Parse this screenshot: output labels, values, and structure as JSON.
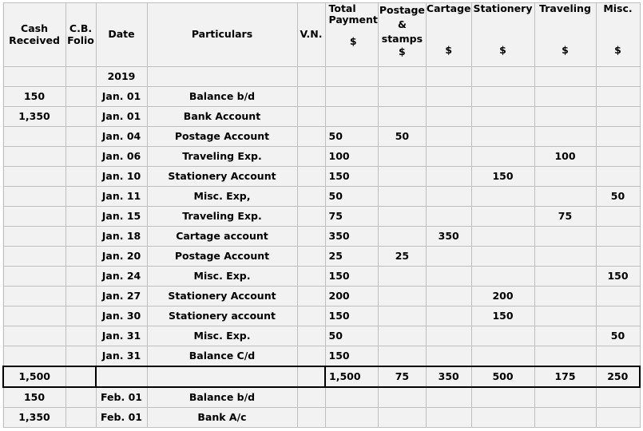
{
  "headers": {
    "cash_received": "Cash Received",
    "cb_folio": "C.B. Folio",
    "date": "Date",
    "particulars": "Particulars",
    "vn": "V.N.",
    "total_payment": "Total Payment",
    "postage_stamps": "Postage & stamps",
    "cartage": "Cartage",
    "stationery": "Stationery",
    "traveling": "Traveling",
    "misc": "Misc.",
    "currency_symbol": "$"
  },
  "rows": [
    {
      "cash": "",
      "folio": "",
      "date": "2019",
      "particulars": "",
      "vn": "",
      "total": "",
      "postage": "",
      "cartage": "",
      "stationery": "",
      "traveling": "",
      "misc": ""
    },
    {
      "cash": "150",
      "folio": "",
      "date": "Jan. 01",
      "particulars": "Balance b/d",
      "vn": "",
      "total": "",
      "postage": "",
      "cartage": "",
      "stationery": "",
      "traveling": "",
      "misc": ""
    },
    {
      "cash": "1,350",
      "folio": "",
      "date": "Jan. 01",
      "particulars": "Bank Account",
      "vn": "",
      "total": "",
      "postage": "",
      "cartage": "",
      "stationery": "",
      "traveling": "",
      "misc": ""
    },
    {
      "cash": "",
      "folio": "",
      "date": "Jan. 04",
      "particulars": "Postage Account",
      "vn": "",
      "total": "50",
      "postage": "50",
      "cartage": "",
      "stationery": "",
      "traveling": "",
      "misc": ""
    },
    {
      "cash": "",
      "folio": "",
      "date": "Jan. 06",
      "particulars": "Traveling Exp.",
      "vn": "",
      "total": "100",
      "postage": "",
      "cartage": "",
      "stationery": "",
      "traveling": "100",
      "misc": ""
    },
    {
      "cash": "",
      "folio": "",
      "date": "Jan. 10",
      "particulars": "Stationery Account",
      "vn": "",
      "total": "150",
      "postage": "",
      "cartage": "",
      "stationery": "150",
      "traveling": "",
      "misc": ""
    },
    {
      "cash": "",
      "folio": "",
      "date": "Jan. 11",
      "particulars": "Misc. Exp,",
      "vn": "",
      "total": "50",
      "postage": "",
      "cartage": "",
      "stationery": "",
      "traveling": "",
      "misc": "50"
    },
    {
      "cash": "",
      "folio": "",
      "date": "Jan. 15",
      "particulars": "Traveling Exp.",
      "vn": "",
      "total": "75",
      "postage": "",
      "cartage": "",
      "stationery": "",
      "traveling": "75",
      "misc": ""
    },
    {
      "cash": "",
      "folio": "",
      "date": "Jan. 18",
      "particulars": "Cartage account",
      "vn": "",
      "total": "350",
      "postage": "",
      "cartage": "350",
      "stationery": "",
      "traveling": "",
      "misc": ""
    },
    {
      "cash": "",
      "folio": "",
      "date": "Jan. 20",
      "particulars": "Postage Account",
      "vn": "",
      "total": "25",
      "postage": "25",
      "cartage": "",
      "stationery": "",
      "traveling": "",
      "misc": ""
    },
    {
      "cash": "",
      "folio": "",
      "date": "Jan. 24",
      "particulars": "Misc. Exp.",
      "vn": "",
      "total": "150",
      "postage": "",
      "cartage": "",
      "stationery": "",
      "traveling": "",
      "misc": "150"
    },
    {
      "cash": "",
      "folio": "",
      "date": "Jan. 27",
      "particulars": "Stationery Account",
      "vn": "",
      "total": "200",
      "postage": "",
      "cartage": "",
      "stationery": "200",
      "traveling": "",
      "misc": ""
    },
    {
      "cash": "",
      "folio": "",
      "date": "Jan. 30",
      "particulars": "Stationery account",
      "vn": "",
      "total": "150",
      "postage": "",
      "cartage": "",
      "stationery": "150",
      "traveling": "",
      "misc": ""
    },
    {
      "cash": "",
      "folio": "",
      "date": "Jan. 31",
      "particulars": "Misc. Exp.",
      "vn": "",
      "total": "50",
      "postage": "",
      "cartage": "",
      "stationery": "",
      "traveling": "",
      "misc": "50"
    },
    {
      "cash": "",
      "folio": "",
      "date": "Jan. 31",
      "particulars": "Balance C/d",
      "vn": "",
      "total": "150",
      "postage": "",
      "cartage": "",
      "stationery": "",
      "traveling": "",
      "misc": ""
    }
  ],
  "totals": {
    "cash": "1,500",
    "total": "1,500",
    "postage": "75",
    "cartage": "350",
    "stationery": "500",
    "traveling": "175",
    "misc": "250"
  },
  "after_rows": [
    {
      "cash": "150",
      "folio": "",
      "date": "Feb. 01",
      "particulars": "Balance b/d",
      "vn": "",
      "total": "",
      "postage": "",
      "cartage": "",
      "stationery": "",
      "traveling": "",
      "misc": ""
    },
    {
      "cash": "1,350",
      "folio": "",
      "date": "Feb. 01",
      "particulars": "Bank A/c",
      "vn": "",
      "total": "",
      "postage": "",
      "cartage": "",
      "stationery": "",
      "traveling": "",
      "misc": ""
    }
  ],
  "colors": {
    "cell_background": "#f2f2f2",
    "grid_line": "#bfbfbf",
    "text": "#000000"
  }
}
